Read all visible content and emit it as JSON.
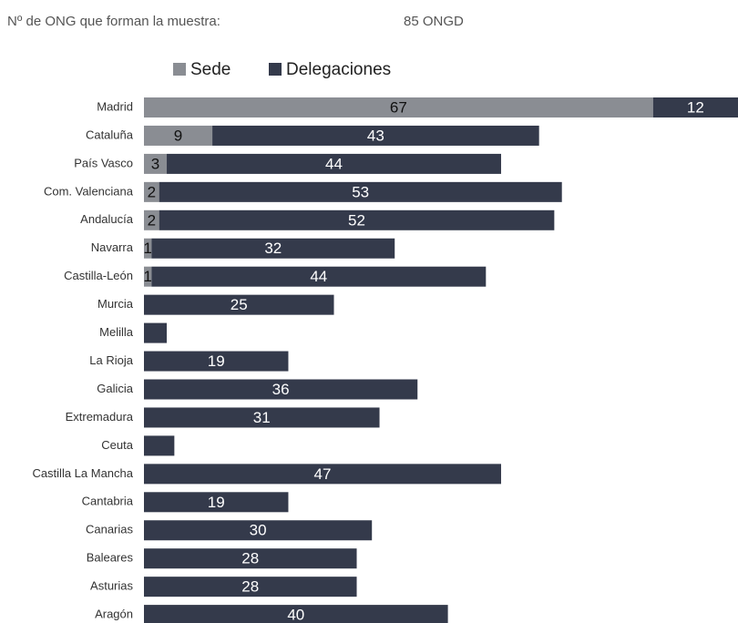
{
  "chart_data": {
    "type": "stacked-barh",
    "subtitle": "Nº de ONG que forman la muestra:",
    "sample_size": "85 ONGD",
    "categories": [
      "Madrid",
      "Cataluña",
      "País Vasco",
      "Com. Valenciana",
      "Andalucía",
      "Navarra",
      "Castilla-León",
      "Murcia",
      "Melilla",
      "La Rioja",
      "Galicia",
      "Extremadura",
      "Ceuta",
      "Castilla La Mancha",
      "Cantabria",
      "Canarias",
      "Baleares",
      "Asturias",
      "Aragón"
    ],
    "series": [
      {
        "name": "Sede",
        "color": "#8a8d93",
        "label_color": "#111111",
        "values": [
          67,
          9,
          3,
          2,
          2,
          1,
          1,
          null,
          null,
          null,
          null,
          null,
          null,
          null,
          null,
          null,
          null,
          null,
          null
        ]
      },
      {
        "name": "Delegaciones",
        "color": "#343a4b",
        "label_color": "#ffffff",
        "values": [
          12,
          43,
          44,
          53,
          52,
          32,
          44,
          25,
          3,
          19,
          36,
          31,
          4,
          47,
          19,
          30,
          28,
          28,
          40
        ],
        "value_labels": [
          "12",
          "43",
          "44",
          "53",
          "52",
          "32",
          "44",
          "25",
          null,
          "19",
          "36",
          "31",
          null,
          "47",
          "19",
          "30",
          "28",
          "28",
          "40"
        ]
      }
    ]
  }
}
